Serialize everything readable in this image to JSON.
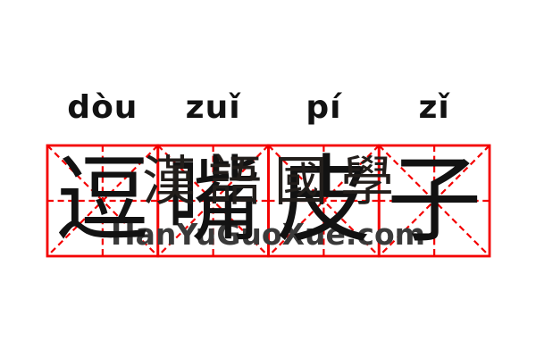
{
  "page": {
    "background": "#ffffff"
  },
  "colors": {
    "grid_red": "#f40000",
    "ink": "#121212",
    "watermark_cjk_ink": "#221e1b",
    "watermark_site_gray": "#3a3a3a"
  },
  "pinyin": {
    "syllables": [
      "dòu",
      "zuǐ",
      "pí",
      "zǐ"
    ]
  },
  "characters": {
    "glyphs": [
      "逗",
      "嘴",
      "皮",
      "子"
    ]
  },
  "watermark": {
    "cjk_text": "漢語國學",
    "site_text": "HanYuGuoXue.com"
  }
}
